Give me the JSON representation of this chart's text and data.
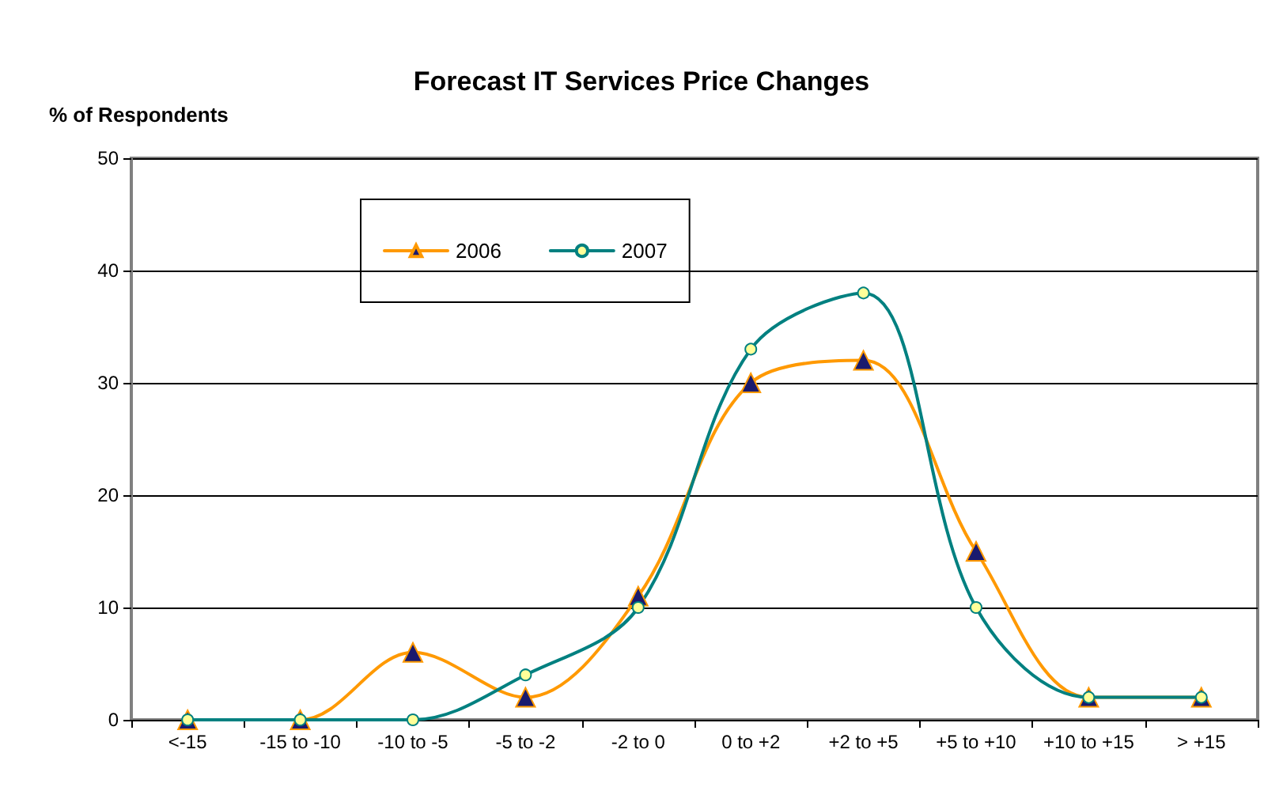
{
  "chart_data": {
    "type": "line",
    "title": "Forecast IT Services Price Changes",
    "ylabel": "% of Respondents",
    "categories": [
      "<-15",
      "-15 to -10",
      "-10 to -5",
      "-5 to -2",
      "-2 to 0",
      "0 to +2",
      "+2 to +5",
      "+5 to +10",
      "+10 to +15",
      "> +15"
    ],
    "series": [
      {
        "name": "2006",
        "color": "#ff9900",
        "marker": "triangle",
        "values": [
          0,
          0,
          6,
          2,
          11,
          30,
          32,
          15,
          2,
          2
        ]
      },
      {
        "name": "2007",
        "color": "#008080",
        "marker": "circle",
        "values": [
          0,
          0,
          0,
          4,
          10,
          33,
          38,
          10,
          2,
          2
        ]
      }
    ],
    "ylim": [
      0,
      50
    ],
    "yticks": [
      0,
      10,
      20,
      30,
      40,
      50
    ],
    "grid": "y",
    "legend": "top left"
  }
}
